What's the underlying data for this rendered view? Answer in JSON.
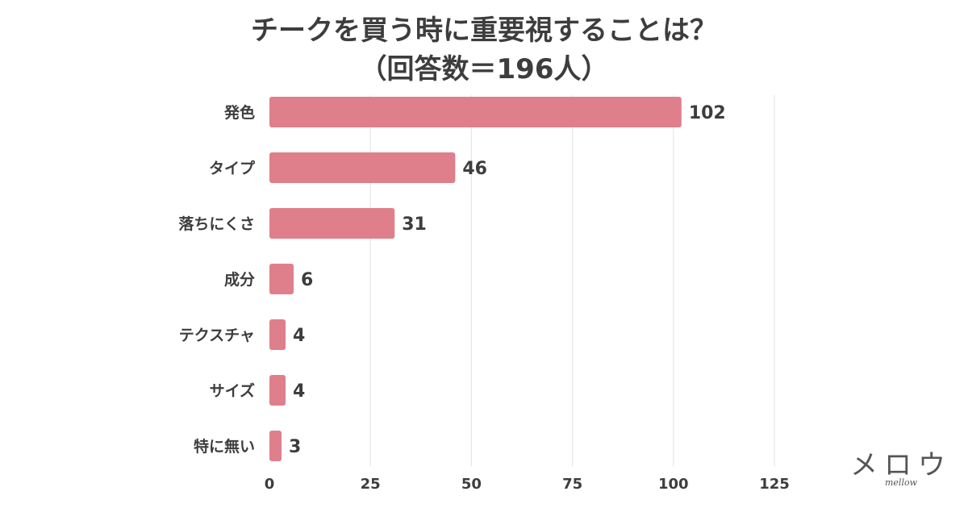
{
  "chart_data": {
    "type": "bar",
    "orientation": "horizontal",
    "title_lines": [
      "チークを買う時に重要視することは？",
      "（回答数＝196人）"
    ],
    "categories": [
      "発色",
      "タイプ",
      "落ちにくさ",
      "成分",
      "テクスチャ",
      "サイズ",
      "特に無い"
    ],
    "values": [
      102,
      46,
      31,
      6,
      4,
      4,
      3
    ],
    "xlim": [
      0,
      125
    ],
    "xticks": [
      0,
      25,
      50,
      75,
      100,
      125
    ],
    "grid": true,
    "bar_color": "#df7f8b",
    "grid_color": "#e6e6e6",
    "xlabel": "",
    "ylabel": ""
  },
  "logo": {
    "text": "メロウ",
    "subtext": "mellow"
  }
}
